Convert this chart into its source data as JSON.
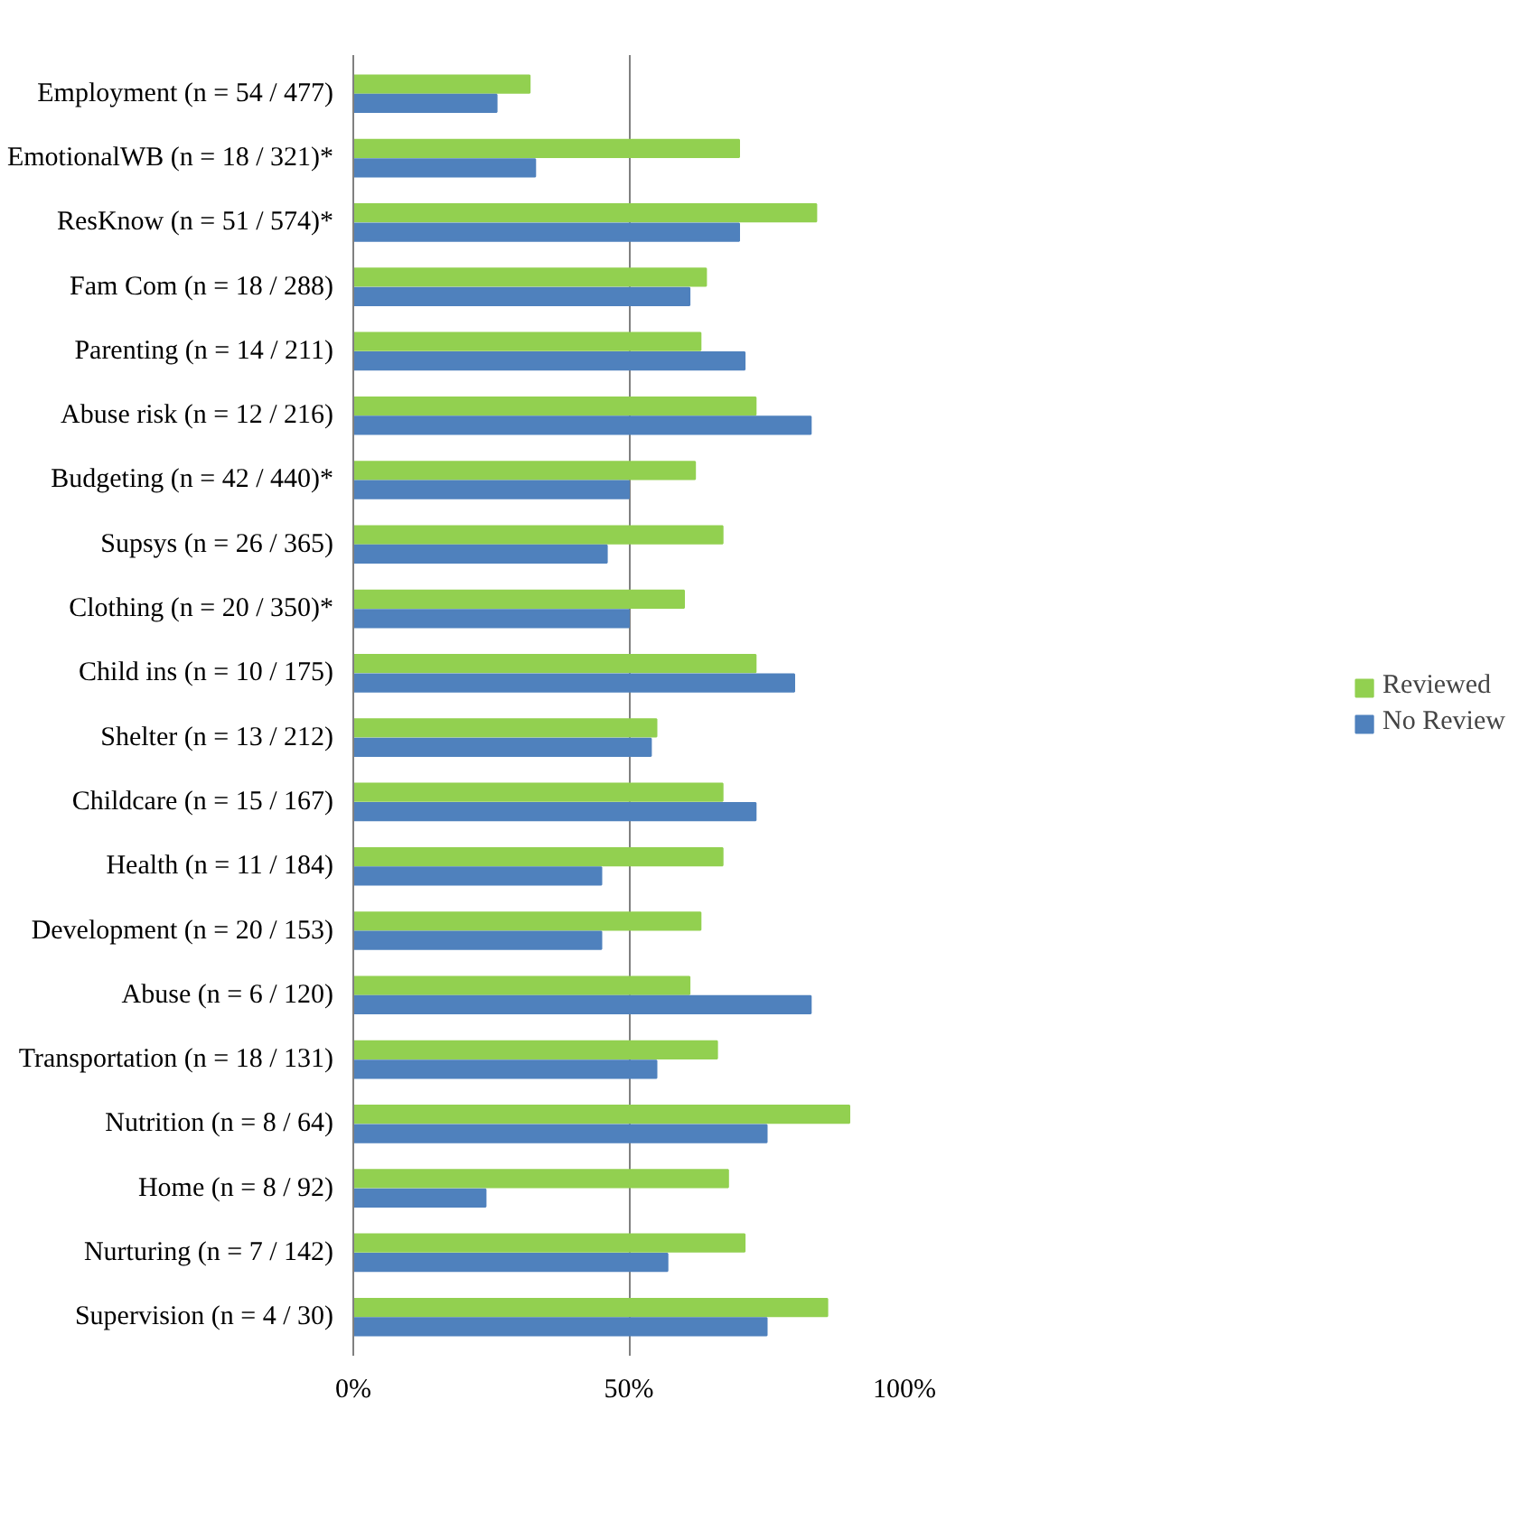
{
  "chart_data": {
    "type": "bar",
    "orientation": "horizontal",
    "categories": [
      "Employment (n = 54 / 477)",
      "EmotionalWB (n = 18 / 321)*",
      "ResKnow (n = 51 / 574)*",
      "Fam Com (n = 18 / 288)",
      "Parenting (n = 14 / 211)",
      "Abuse risk (n = 12 / 216)",
      "Budgeting (n = 42 / 440)*",
      "Supsys (n = 26 / 365)",
      "Clothing (n = 20 / 350)*",
      "Child ins (n = 10 / 175)",
      "Shelter (n = 13 / 212)",
      "Childcare (n = 15 / 167)",
      "Health (n = 11 / 184)",
      "Development (n = 20 / 153)",
      "Abuse (n = 6 / 120)",
      "Transportation (n = 18 / 131)",
      "Nutrition (n = 8 / 64)",
      "Home (n = 8 / 92)",
      "Nurturing (n = 7 / 142)",
      "Supervision (n = 4 / 30)"
    ],
    "series": [
      {
        "name": "Reviewed",
        "color": "#92d050",
        "values": [
          32,
          70,
          84,
          64,
          63,
          73,
          62,
          67,
          60,
          73,
          55,
          67,
          67,
          63,
          61,
          66,
          90,
          68,
          71,
          86
        ]
      },
      {
        "name": "No Review",
        "color": "#4f81bd",
        "values": [
          26,
          33,
          70,
          61,
          71,
          83,
          50,
          46,
          50,
          80,
          54,
          73,
          45,
          45,
          83,
          55,
          75,
          24,
          57,
          75
        ]
      }
    ],
    "xlim": [
      0,
      100
    ],
    "xticks": [
      {
        "value": 0,
        "label": "0%"
      },
      {
        "value": 50,
        "label": "50%"
      },
      {
        "value": 100,
        "label": "100%"
      }
    ],
    "grid": "x",
    "legend": "right"
  }
}
